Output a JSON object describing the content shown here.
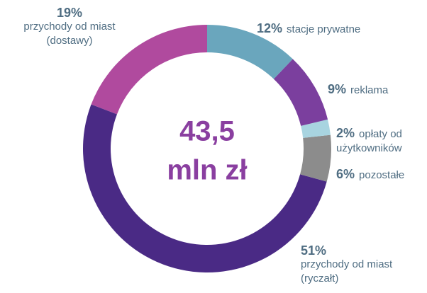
{
  "chart_data": {
    "type": "donut",
    "categories": [
      "stacje prywatne",
      "reklama",
      "opłaty od użytkowników",
      "pozostałe",
      "przychody od miast (ryczałt)",
      "przychody od miast (dostawy)"
    ],
    "values": [
      12,
      9,
      2,
      6,
      51,
      19
    ],
    "value_labels": [
      "12%",
      "9%",
      "2%",
      "6%",
      "51%",
      "19%"
    ],
    "colors": [
      "#6aa6bd",
      "#7b3f9e",
      "#a8d4e0",
      "#8c8c8c",
      "#4a2a85",
      "#b04a9e"
    ],
    "center_text": [
      "43,5",
      "mln zł"
    ]
  }
}
